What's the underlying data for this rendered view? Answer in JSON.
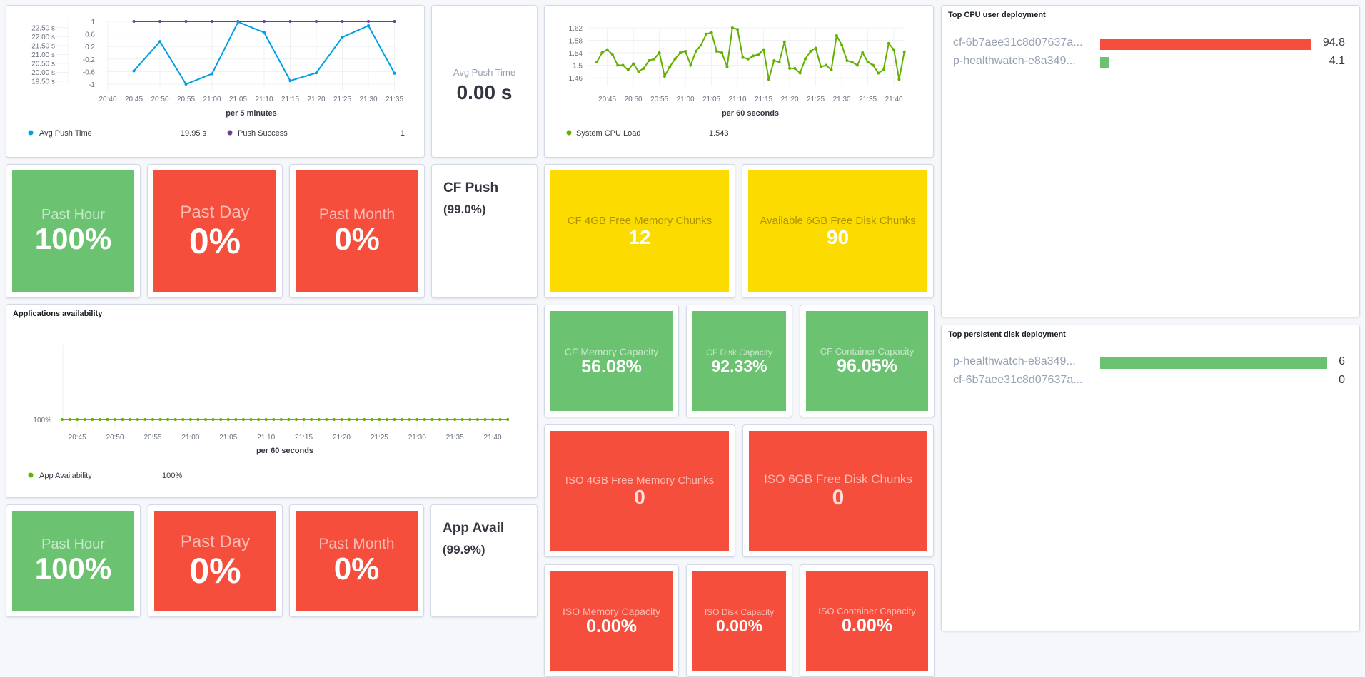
{
  "colors": {
    "green": "#6bc271",
    "red": "#f54e3c",
    "yellow": "#fcdb00",
    "blue": "#009ee3",
    "purple": "#6f3c97",
    "lime": "#62b000"
  },
  "chart_data": [
    {
      "type": "line",
      "id": "push",
      "xlabel": "per 5 minutes",
      "x": [
        "20:45",
        "20:50",
        "20:55",
        "21:00",
        "21:05",
        "21:10",
        "21:15",
        "21:20",
        "21:25",
        "21:30",
        "21:35"
      ],
      "x_ticks": [
        "20:40",
        "20:45",
        "20:50",
        "20:55",
        "21:00",
        "21:05",
        "21:10",
        "21:15",
        "21:20",
        "21:25",
        "21:30",
        "21:35"
      ],
      "y_left_ticks": [
        "22.50 s",
        "22.00 s",
        "21.50 s",
        "21.00 s",
        "20.50 s",
        "20.00 s",
        "19.50 s"
      ],
      "y_right_ticks": [
        "1",
        "0.6",
        "0.2",
        "-0.2",
        "-0.6",
        "-1"
      ],
      "y_left_lim": [
        19.34,
        22.85
      ],
      "y_right_lim": [
        -1,
        1
      ],
      "grid": true,
      "series": [
        {
          "name": "Avg Push Time",
          "axis": "left",
          "color": "#009ee3",
          "values": [
            20.08,
            21.73,
            19.34,
            19.92,
            22.82,
            22.23,
            19.53,
            19.97,
            21.97,
            22.61,
            19.95
          ],
          "legend_value": "19.95 s"
        },
        {
          "name": "Push Success",
          "axis": "right",
          "color": "#6f3c97",
          "values": [
            1,
            1,
            1,
            1,
            1,
            1,
            1,
            1,
            1,
            1,
            1
          ],
          "legend_value": "1"
        }
      ],
      "legend": "bottom"
    },
    {
      "type": "line",
      "id": "cpu",
      "xlabel": "per 60 seconds",
      "x_start": "20:43",
      "x_end": "21:42",
      "x_step": "1 minute",
      "x_ticks": [
        "20:45",
        "20:50",
        "20:55",
        "21:00",
        "21:05",
        "21:10",
        "21:15",
        "21:20",
        "21:25",
        "21:30",
        "21:35",
        "21:40"
      ],
      "y_ticks": [
        "1.62",
        "1.58",
        "1.54",
        "1.5",
        "1.46"
      ],
      "ylim": [
        1.46,
        1.62
      ],
      "grid": true,
      "series": [
        {
          "name": "System CPU Load",
          "color": "#62b000",
          "legend_value": "1.543",
          "values": [
            1.51,
            1.54,
            1.55,
            1.535,
            1.5,
            1.5,
            1.485,
            1.505,
            1.48,
            1.49,
            1.515,
            1.52,
            1.54,
            1.465,
            1.495,
            1.52,
            1.54,
            1.545,
            1.5,
            1.545,
            1.565,
            1.6,
            1.605,
            1.545,
            1.54,
            1.495,
            1.62,
            1.615,
            1.525,
            1.52,
            1.53,
            1.535,
            1.55,
            1.455,
            1.515,
            1.51,
            1.575,
            1.49,
            1.49,
            1.475,
            1.52,
            1.545,
            1.555,
            1.495,
            1.5,
            1.485,
            1.595,
            1.565,
            1.515,
            1.51,
            1.5,
            1.54,
            1.51,
            1.5,
            1.475,
            1.485,
            1.57,
            1.55,
            1.455,
            1.543
          ]
        }
      ],
      "legend": "bottom"
    },
    {
      "type": "line",
      "id": "apps",
      "title": "Applications availability",
      "xlabel": "per 60 seconds",
      "x_start": "20:43",
      "x_end": "21:42",
      "x_step": "1 minute",
      "x_ticks": [
        "20:45",
        "20:50",
        "20:55",
        "21:00",
        "21:05",
        "21:10",
        "21:15",
        "21:20",
        "21:25",
        "21:30",
        "21:35",
        "21:40"
      ],
      "y_ticks": [
        "100%"
      ],
      "series": [
        {
          "name": "App Availability",
          "color": "#62b000",
          "legend_value": "100%",
          "values": [
            100,
            100,
            100,
            100,
            100,
            100,
            100,
            100,
            100,
            100,
            100,
            100,
            100,
            100,
            100,
            100,
            100,
            100,
            100,
            100,
            100,
            100,
            100,
            100,
            100,
            100,
            100,
            100,
            100,
            100,
            100,
            100,
            100,
            100,
            100,
            100,
            100,
            100,
            100,
            100,
            100,
            100,
            100,
            100,
            100,
            100,
            100,
            100,
            100,
            100,
            100,
            100,
            100,
            100,
            100,
            100,
            100,
            100,
            100,
            100
          ]
        }
      ],
      "legend": "bottom"
    }
  ],
  "avg_push": {
    "label": "Avg Push Time",
    "value": "0.00 s"
  },
  "cf_push": {
    "tiles": [
      {
        "label": "Past Hour",
        "value": "100%",
        "status": "green"
      },
      {
        "label": "Past Day",
        "value": "0%",
        "status": "red"
      },
      {
        "label": "Past Month",
        "value": "0%",
        "status": "red"
      }
    ],
    "title": "CF Push",
    "subtitle": "(99.0%)"
  },
  "app_avail": {
    "tiles": [
      {
        "label": "Past Hour",
        "value": "100%",
        "status": "green"
      },
      {
        "label": "Past Day",
        "value": "0%",
        "status": "red"
      },
      {
        "label": "Past Month",
        "value": "0%",
        "status": "red"
      }
    ],
    "title": "App Avail",
    "subtitle": "(99.9%)"
  },
  "chunks": {
    "cf_mem": {
      "label": "CF 4GB Free Memory Chunks",
      "value": "12",
      "status": "yellow"
    },
    "cf_disk": {
      "label": "Available 6GB Free Disk Chunks",
      "value": "90",
      "status": "yellow"
    },
    "iso_mem": {
      "label": "ISO 4GB Free Memory Chunks",
      "value": "0",
      "status": "red"
    },
    "iso_disk": {
      "label": "ISO 6GB Free Disk Chunks",
      "value": "0",
      "status": "red"
    }
  },
  "capacity": {
    "cf": [
      {
        "label": "CF Memory Capacity",
        "value": "56.08%",
        "status": "green"
      },
      {
        "label": "CF Disk Capacity",
        "value": "92.33%",
        "status": "green"
      },
      {
        "label": "CF Container Capacity",
        "value": "96.05%",
        "status": "green"
      }
    ],
    "iso": [
      {
        "label": "ISO Memory Capacity",
        "value": "0.00%",
        "status": "red"
      },
      {
        "label": "ISO Disk Capacity",
        "value": "0.00%",
        "status": "red"
      },
      {
        "label": "ISO Container Capacity",
        "value": "0.00%",
        "status": "red"
      }
    ]
  },
  "top_cpu": {
    "title": "Top CPU user deployment",
    "max": 94.8,
    "rows": [
      {
        "label": "cf-6b7aee31c8d07637a...",
        "value": "94.8",
        "num": 94.8,
        "color": "#f54e3c"
      },
      {
        "label": "p-healthwatch-e8a349...",
        "value": "4.1",
        "num": 4.1,
        "color": "#6bc271"
      }
    ]
  },
  "top_disk": {
    "title": "Top persistent disk deployment",
    "max": 6,
    "rows": [
      {
        "label": "p-healthwatch-e8a349...",
        "value": "6",
        "num": 6,
        "color": "#6bc271"
      },
      {
        "label": "cf-6b7aee31c8d07637a...",
        "value": "0",
        "num": 0,
        "color": "#6bc271"
      }
    ]
  }
}
